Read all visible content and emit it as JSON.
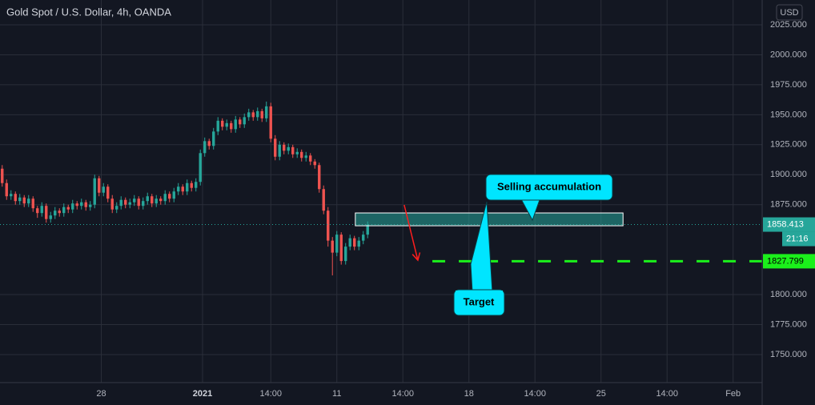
{
  "chart_data": {
    "type": "candlestick",
    "title": "Gold Spot / U.S. Dollar, 4h, OANDA",
    "currency_button": "USD",
    "countdown": "21:16",
    "up_color": "#26a69a",
    "down_color": "#ef5350",
    "grid": true,
    "xlim": [
      -0.5,
      172.6
    ],
    "ylim": [
      1726.6,
      2045.7
    ],
    "xticks": [
      {
        "value": 22.5,
        "label": "28"
      },
      {
        "value": 45.5,
        "label": "2021"
      },
      {
        "value": 61,
        "label": "14:00"
      },
      {
        "value": 76,
        "label": "11"
      },
      {
        "value": 91,
        "label": "14:00"
      },
      {
        "value": 106,
        "label": "18"
      },
      {
        "value": 121,
        "label": "14:00"
      },
      {
        "value": 136,
        "label": "25"
      },
      {
        "value": 151,
        "label": "14:00"
      },
      {
        "value": 166,
        "label": "Feb"
      }
    ],
    "yticks": [
      {
        "value": 2025,
        "label": "2025.000"
      },
      {
        "value": 2000,
        "label": "2000.000"
      },
      {
        "value": 1975,
        "label": "1975.000"
      },
      {
        "value": 1950,
        "label": "1950.000"
      },
      {
        "value": 1925,
        "label": "1925.000"
      },
      {
        "value": 1900,
        "label": "1900.000"
      },
      {
        "value": 1875,
        "label": "1875.000"
      },
      {
        "value": 1800,
        "label": "1800.000"
      },
      {
        "value": 1775,
        "label": "1775.000"
      },
      {
        "value": 1750,
        "label": "1750.000"
      }
    ],
    "ohlc": [
      [
        1905,
        1908,
        1890,
        1893
      ],
      [
        1893,
        1896,
        1879,
        1882
      ],
      [
        1882,
        1887,
        1879,
        1884
      ],
      [
        1884,
        1886,
        1875,
        1878
      ],
      [
        1878,
        1884,
        1875,
        1881
      ],
      [
        1881,
        1883,
        1873,
        1876
      ],
      [
        1876,
        1883,
        1873,
        1880
      ],
      [
        1880,
        1882,
        1869,
        1872
      ],
      [
        1872,
        1874,
        1864,
        1868
      ],
      [
        1868,
        1877,
        1865,
        1874
      ],
      [
        1874,
        1876,
        1860,
        1863
      ],
      [
        1863,
        1869,
        1860,
        1866
      ],
      [
        1866,
        1873,
        1863,
        1870
      ],
      [
        1870,
        1872,
        1865,
        1868
      ],
      [
        1868,
        1876,
        1865,
        1873
      ],
      [
        1873,
        1875,
        1868,
        1871
      ],
      [
        1871,
        1879,
        1868,
        1876
      ],
      [
        1876,
        1878,
        1871,
        1874
      ],
      [
        1874,
        1880,
        1871,
        1877
      ],
      [
        1877,
        1879,
        1870,
        1873
      ],
      [
        1873,
        1878,
        1870,
        1875
      ],
      [
        1875,
        1900,
        1872,
        1897
      ],
      [
        1897,
        1899,
        1882,
        1885
      ],
      [
        1885,
        1893,
        1882,
        1890
      ],
      [
        1890,
        1892,
        1877,
        1880
      ],
      [
        1880,
        1883,
        1868,
        1871
      ],
      [
        1871,
        1877,
        1868,
        1874
      ],
      [
        1874,
        1882,
        1871,
        1879
      ],
      [
        1879,
        1881,
        1872,
        1875
      ],
      [
        1875,
        1880,
        1872,
        1877
      ],
      [
        1877,
        1883,
        1874,
        1880
      ],
      [
        1880,
        1882,
        1871,
        1874
      ],
      [
        1874,
        1881,
        1871,
        1878
      ],
      [
        1878,
        1885,
        1875,
        1882
      ],
      [
        1882,
        1884,
        1873,
        1876
      ],
      [
        1876,
        1883,
        1873,
        1880
      ],
      [
        1880,
        1882,
        1875,
        1878
      ],
      [
        1878,
        1887,
        1875,
        1884
      ],
      [
        1884,
        1886,
        1877,
        1880
      ],
      [
        1880,
        1889,
        1877,
        1886
      ],
      [
        1886,
        1893,
        1883,
        1890
      ],
      [
        1890,
        1892,
        1883,
        1886
      ],
      [
        1886,
        1896,
        1883,
        1893
      ],
      [
        1893,
        1895,
        1886,
        1889
      ],
      [
        1889,
        1897,
        1886,
        1894
      ],
      [
        1894,
        1921,
        1891,
        1918
      ],
      [
        1918,
        1931,
        1915,
        1928
      ],
      [
        1928,
        1930,
        1921,
        1924
      ],
      [
        1924,
        1939,
        1921,
        1936
      ],
      [
        1936,
        1948,
        1933,
        1945
      ],
      [
        1945,
        1947,
        1937,
        1940
      ],
      [
        1940,
        1946,
        1937,
        1943
      ],
      [
        1943,
        1945,
        1935,
        1938
      ],
      [
        1938,
        1949,
        1935,
        1946
      ],
      [
        1946,
        1948,
        1939,
        1942
      ],
      [
        1942,
        1951,
        1939,
        1948
      ],
      [
        1948,
        1955,
        1945,
        1952
      ],
      [
        1952,
        1954,
        1945,
        1948
      ],
      [
        1948,
        1956,
        1945,
        1953
      ],
      [
        1953,
        1955,
        1944,
        1947
      ],
      [
        1947,
        1961,
        1944,
        1957
      ],
      [
        1957,
        1960,
        1927,
        1930
      ],
      [
        1930,
        1933,
        1912,
        1915
      ],
      [
        1915,
        1928,
        1912,
        1925
      ],
      [
        1925,
        1927,
        1917,
        1920
      ],
      [
        1920,
        1926,
        1917,
        1923
      ],
      [
        1923,
        1925,
        1914,
        1917
      ],
      [
        1917,
        1922,
        1914,
        1919
      ],
      [
        1919,
        1921,
        1911,
        1914
      ],
      [
        1914,
        1919,
        1911,
        1916
      ],
      [
        1916,
        1918,
        1908,
        1911
      ],
      [
        1911,
        1913,
        1905,
        1908
      ],
      [
        1908,
        1910,
        1885,
        1888
      ],
      [
        1888,
        1891,
        1867,
        1870
      ],
      [
        1870,
        1873,
        1840,
        1845
      ],
      [
        1845,
        1848,
        1816,
        1835
      ],
      [
        1835,
        1853,
        1832,
        1850
      ],
      [
        1850,
        1852,
        1825,
        1828
      ],
      [
        1828,
        1843,
        1825,
        1840
      ],
      [
        1840,
        1850,
        1837,
        1847
      ],
      [
        1847,
        1849,
        1837,
        1840
      ],
      [
        1840,
        1848,
        1837,
        1845
      ],
      [
        1845,
        1853,
        1842,
        1850
      ],
      [
        1850,
        1861,
        1847,
        1858.413
      ]
    ],
    "zone": {
      "x": [
        80.2,
        141
      ],
      "y": [
        1857.4,
        1868.1
      ]
    },
    "arrow": {
      "x": [
        91.3,
        94.4
      ],
      "y": [
        1874.8,
        1828.7
      ]
    },
    "target_line": {
      "value": 1827.799,
      "x_start": 97.7
    },
    "annotations": [
      "Selling accumulation",
      "Target"
    ]
  }
}
